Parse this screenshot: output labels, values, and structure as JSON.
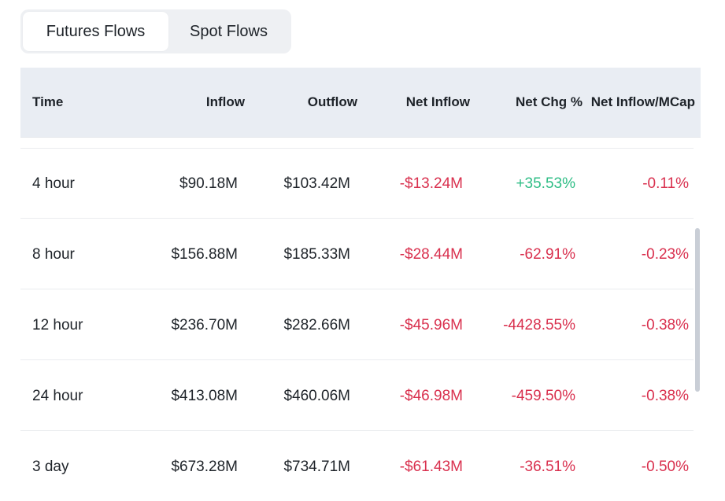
{
  "tabs": [
    {
      "label": "Futures Flows",
      "active": true
    },
    {
      "label": "Spot Flows",
      "active": false
    }
  ],
  "table": {
    "headers": {
      "time": "Time",
      "inflow": "Inflow",
      "outflow": "Outflow",
      "net_inflow": "Net Inflow",
      "net_chg": "Net Chg %",
      "net_inflow_mcap": "Net Inflow/MCap"
    },
    "rows": [
      {
        "time": "4 hour",
        "inflow": "$90.18M",
        "outflow": "$103.42M",
        "net_inflow": "-$13.24M",
        "net_chg": "+35.53%",
        "net_inflow_mcap": "-0.11%"
      },
      {
        "time": "8 hour",
        "inflow": "$156.88M",
        "outflow": "$185.33M",
        "net_inflow": "-$28.44M",
        "net_chg": "-62.91%",
        "net_inflow_mcap": "-0.23%"
      },
      {
        "time": "12 hour",
        "inflow": "$236.70M",
        "outflow": "$282.66M",
        "net_inflow": "-$45.96M",
        "net_chg": "-4428.55%",
        "net_inflow_mcap": "-0.38%"
      },
      {
        "time": "24 hour",
        "inflow": "$413.08M",
        "outflow": "$460.06M",
        "net_inflow": "-$46.98M",
        "net_chg": "-459.50%",
        "net_inflow_mcap": "-0.38%"
      },
      {
        "time": "3 day",
        "inflow": "$673.28M",
        "outflow": "$734.71M",
        "net_inflow": "-$61.43M",
        "net_chg": "-36.51%",
        "net_inflow_mcap": "-0.50%"
      }
    ]
  },
  "colors": {
    "negative": "#d9304e",
    "positive": "#2ebd85",
    "header_bg": "#e9edf3"
  }
}
